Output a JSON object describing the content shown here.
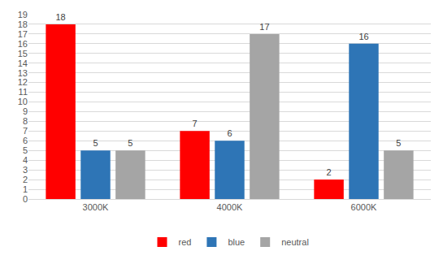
{
  "chart_data": {
    "type": "bar",
    "categories": [
      "3000K",
      "4000K",
      "6000K"
    ],
    "series": [
      {
        "name": "red",
        "color": "#ff0000",
        "values": [
          18,
          7,
          2
        ]
      },
      {
        "name": "blue",
        "color": "#2e75b6",
        "values": [
          5,
          6,
          16
        ]
      },
      {
        "name": "neutral",
        "color": "#a5a5a5",
        "values": [
          5,
          17,
          5
        ]
      }
    ],
    "ylim": [
      0,
      19
    ],
    "yticks": [
      0,
      1,
      2,
      3,
      4,
      5,
      6,
      7,
      8,
      9,
      10,
      11,
      12,
      13,
      14,
      15,
      16,
      17,
      18,
      19
    ],
    "grid": true,
    "data_labels": true,
    "legend": "bottom"
  }
}
